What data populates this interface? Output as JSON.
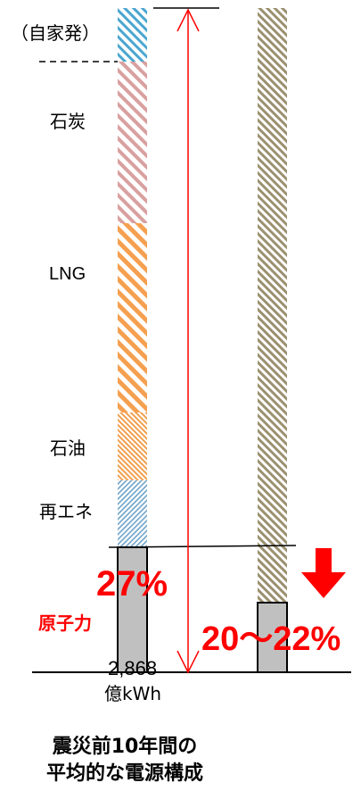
{
  "labels": {
    "jikahatsu": "（自家発）",
    "coal": "石炭",
    "lng": "LNG",
    "oil": "石油",
    "renewable": "再エネ",
    "nuclear_label": "原子力",
    "nuclear_pct_before": "27%",
    "nuclear_pct_future": "20～22%",
    "total_value": "2,868",
    "total_unit": "億kWh"
  },
  "caption": {
    "line1": "震災前10年間の",
    "line2": "平均的な電源構成"
  },
  "colors": {
    "jikahatsu": "#4aa6cf",
    "coal": "#d9a0a0",
    "lng": "#f5a050",
    "oil": "#f0a050",
    "renewable": "#6fa3c8",
    "nuclear": "#c0c0c0",
    "second_bar": "#9b9070",
    "accent_red": "#ff0000"
  }
}
